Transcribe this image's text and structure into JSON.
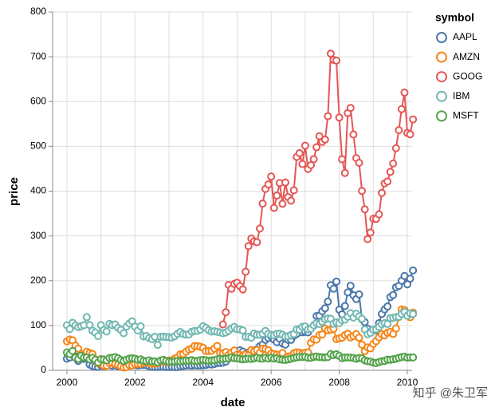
{
  "chart_data": {
    "type": "line",
    "x_label": "date",
    "y_label": "price",
    "legend_title": "symbol",
    "watermark": "知乎 @朱卫军",
    "xlim": [
      1999.58,
      2010.14
    ],
    "xticks": [
      2000,
      2002,
      2004,
      2006,
      2008,
      2010
    ],
    "xminorticks": [
      2001,
      2003,
      2005,
      2007,
      2009
    ],
    "ylim": [
      0,
      800
    ],
    "yticks": [
      0,
      100,
      200,
      300,
      400,
      500,
      600,
      700,
      800
    ],
    "grid": true,
    "x": [
      2000,
      2000.083,
      2000.167,
      2000.25,
      2000.333,
      2000.417,
      2000.5,
      2000.583,
      2000.667,
      2000.75,
      2000.833,
      2000.917,
      2001,
      2001.083,
      2001.167,
      2001.25,
      2001.333,
      2001.417,
      2001.5,
      2001.583,
      2001.667,
      2001.75,
      2001.833,
      2001.917,
      2002,
      2002.083,
      2002.167,
      2002.25,
      2002.333,
      2002.417,
      2002.5,
      2002.583,
      2002.667,
      2002.75,
      2002.833,
      2002.917,
      2003,
      2003.083,
      2003.167,
      2003.25,
      2003.333,
      2003.417,
      2003.5,
      2003.583,
      2003.667,
      2003.75,
      2003.833,
      2003.917,
      2004,
      2004.083,
      2004.167,
      2004.25,
      2004.333,
      2004.417,
      2004.5,
      2004.583,
      2004.667,
      2004.75,
      2004.833,
      2004.917,
      2005,
      2005.083,
      2005.167,
      2005.25,
      2005.333,
      2005.417,
      2005.5,
      2005.583,
      2005.667,
      2005.75,
      2005.833,
      2005.917,
      2006,
      2006.083,
      2006.167,
      2006.25,
      2006.333,
      2006.417,
      2006.5,
      2006.583,
      2006.667,
      2006.75,
      2006.833,
      2006.917,
      2007,
      2007.083,
      2007.167,
      2007.25,
      2007.333,
      2007.417,
      2007.5,
      2007.583,
      2007.667,
      2007.75,
      2007.833,
      2007.917,
      2008,
      2008.083,
      2008.167,
      2008.25,
      2008.333,
      2008.417,
      2008.5,
      2008.583,
      2008.667,
      2008.75,
      2008.833,
      2008.917,
      2009,
      2009.083,
      2009.167,
      2009.25,
      2009.333,
      2009.417,
      2009.5,
      2009.583,
      2009.667,
      2009.75,
      2009.833,
      2009.917,
      2010,
      2010.083,
      2010.167
    ],
    "series": [
      {
        "name": "AAPL",
        "color": "#4c78a8",
        "values": [
          25.94,
          28.66,
          33.95,
          31.01,
          21,
          26.19,
          25.41,
          30.47,
          12.88,
          9.78,
          8.25,
          7.44,
          10.81,
          9.12,
          11.03,
          12.74,
          9.98,
          11.62,
          9.4,
          9.27,
          7.76,
          8.78,
          10.65,
          10.95,
          12.36,
          10.85,
          11.84,
          12.14,
          11.65,
          8.86,
          7.63,
          7.38,
          7.25,
          8.03,
          7.75,
          7.16,
          7.18,
          7.51,
          7.07,
          7.11,
          8.98,
          9.53,
          10.54,
          11.31,
          10.36,
          11.44,
          10.45,
          10.69,
          11.28,
          11.96,
          13.52,
          12.89,
          14.03,
          16.27,
          16.17,
          17.25,
          19.38,
          26.2,
          33.53,
          32.2,
          38.45,
          44.86,
          41.67,
          36.06,
          39.76,
          36.81,
          42.65,
          46.89,
          53.61,
          57.59,
          67.82,
          71.89,
          75.51,
          68.49,
          62.72,
          70.39,
          59.77,
          57.27,
          67.96,
          67.85,
          76.98,
          81.08,
          91.66,
          84.84,
          85.73,
          84.61,
          92.91,
          99.8,
          121.19,
          122.04,
          131.76,
          138.48,
          153.47,
          189.95,
          182.22,
          198.08,
          135.36,
          125.02,
          143.5,
          173.95,
          188.75,
          167.44,
          158.95,
          169.53,
          113.66,
          107.59,
          92.67,
          85.35,
          90.13,
          89.31,
          105.12,
          125.83,
          135.81,
          142.43,
          163.39,
          168.21,
          185.35,
          188.5,
          199.91,
          210.73,
          192.06,
          204.62,
          223.02
        ]
      },
      {
        "name": "AMZN",
        "color": "#f58518",
        "values": [
          64.56,
          68.87,
          67,
          55.19,
          48.31,
          36.31,
          30.12,
          41.5,
          38.44,
          36.62,
          24.69,
          15.56,
          17.31,
          10.19,
          10.23,
          15.78,
          16.69,
          14.15,
          12.49,
          8.94,
          5.97,
          6.98,
          11.32,
          10.82,
          14.19,
          14.1,
          14.3,
          16.69,
          18.23,
          16.25,
          14.45,
          14.94,
          15.93,
          19.36,
          23.35,
          18.89,
          21.85,
          22.01,
          26.03,
          28.69,
          35.89,
          36.32,
          41.64,
          46.32,
          48.43,
          54.43,
          53.97,
          52.62,
          50.4,
          43.01,
          43.28,
          43.6,
          48.5,
          54.4,
          38.92,
          38.14,
          40.86,
          34.13,
          39.68,
          44.29,
          35.18,
          34.27,
          32.36,
          35.51,
          33.09,
          45.15,
          42.7,
          45.3,
          39.86,
          48.46,
          47.15,
          44.82,
          37.44,
          36.53,
          35.21,
          34.61,
          38.68,
          26.89,
          30.83,
          32.12,
          38.09,
          40.34,
          39.46,
          37.67,
          39.14,
          39.79,
          61.33,
          69.14,
          68.41,
          78.54,
          79.91,
          93.15,
          89.15,
          90.56,
          92.64,
          69.58,
          71.3,
          72.76,
          78.63,
          81.62,
          73.33,
          76.34,
          80.81,
          72.76,
          57.24,
          42.7,
          51.28,
          48.9,
          58.82,
          64.79,
          73.44,
          80.52,
          77.99,
          83.66,
          85.76,
          81.19,
          93.36,
          118.81,
          135.91,
          134.52,
          125.41,
          118.4,
          128.82
        ]
      },
      {
        "name": "GOOG",
        "color": "#e45756",
        "values": [
          null,
          null,
          null,
          null,
          null,
          null,
          null,
          null,
          null,
          null,
          null,
          null,
          null,
          null,
          null,
          null,
          null,
          null,
          null,
          null,
          null,
          null,
          null,
          null,
          null,
          null,
          null,
          null,
          null,
          null,
          null,
          null,
          null,
          null,
          null,
          null,
          null,
          null,
          null,
          null,
          null,
          null,
          null,
          null,
          null,
          null,
          null,
          null,
          null,
          null,
          null,
          null,
          null,
          null,
          null,
          102.37,
          129.6,
          190.64,
          181.98,
          192.79,
          195.62,
          187.99,
          180.51,
          220,
          277.27,
          294.15,
          287.76,
          286,
          316.46,
          372.14,
          404.91,
          414.86,
          432.66,
          362.62,
          390,
          417.94,
          371.82,
          419.33,
          386.6,
          378.53,
          401.9,
          476.39,
          484.81,
          460.48,
          501.5,
          449.45,
          458.16,
          471.38,
          497.91,
          522.7,
          510,
          515.25,
          567.27,
          707,
          693,
          691.48,
          564.3,
          471.18,
          440.47,
          574.29,
          585.8,
          526.42,
          473.75,
          463.29,
          400.52,
          359.36,
          292.96,
          307.65,
          338.53,
          337.99,
          348.06,
          395.97,
          417.23,
          421.59,
          443.05,
          461.67,
          495.85,
          536.12,
          583,
          619.98,
          529.94,
          526.8,
          560.19
        ]
      },
      {
        "name": "IBM",
        "color": "#72b7b2",
        "values": [
          100.52,
          92.11,
          106.11,
          99.95,
          96.31,
          98.33,
          100.74,
          118.62,
          101.19,
          88.5,
          84.12,
          76.47,
          100.76,
          89.98,
          86.63,
          103.7,
          100.82,
          102.35,
          94.87,
          90.25,
          82.82,
          97.58,
          104.5,
          109.36,
          97.54,
          88.82,
          98.32,
          75.81,
          76.57,
          71.89,
          69.48,
          74.92,
          56.78,
          74.92,
          75.25,
          74.43,
          73.88,
          73.36,
          76.09,
          81.48,
          85.55,
          80.87,
          79.66,
          80.1,
          86.13,
          87.96,
          88.06,
          90.76,
          98.39,
          94.94,
          89.58,
          86.5,
          87.27,
          85.88,
          84.59,
          82.69,
          84.43,
          88.47,
          93.61,
          96.85,
          91.59,
          91.11,
          89.17,
          74.66,
          74.58,
          72.93,
          82.13,
          79.57,
          79.56,
          81.43,
          87.9,
          81.53,
          79.14,
          78.5,
          81.33,
          81.68,
          79.2,
          75.35,
          76.12,
          79.11,
          80.95,
          91.18,
          90.92,
          96.82,
          97.85,
          91.36,
          92.82,
          100.45,
          105.21,
          103.27,
          108.17,
          113.78,
          115.58,
          114.84,
          103.93,
          106.91,
          105.1,
          111.64,
          113.2,
          119.58,
          127.51,
          117.79,
          126.32,
          120.37,
          114.92,
          91.06,
          80.39,
          83.56,
          90.75,
          91.51,
          96.94,
          102.96,
          105.29,
          103.36,
          116.58,
          117.13,
          118.96,
          119.55,
          125.72,
          130.32,
          121.85,
          127.16,
          125.55
        ]
      },
      {
        "name": "MSFT",
        "color": "#54a24b",
        "values": [
          39.81,
          36.35,
          43.22,
          28.37,
          25.45,
          32.54,
          28.4,
          28.4,
          24.53,
          28.02,
          23.34,
          17.65,
          24.84,
          24,
          22.25,
          27.56,
          28.14,
          29.7,
          26.93,
          23.21,
          20.82,
          23.65,
          26.12,
          26.95,
          25.92,
          23.73,
          24.53,
          21.26,
          20.71,
          22.25,
          19.52,
          19.97,
          17.79,
          21.75,
          23.46,
          21.03,
          19.31,
          19.34,
          19.76,
          20.87,
          20.09,
          20.93,
          21.56,
          21.65,
          22.69,
          20.89,
          21.04,
          22.56,
          23.28,
          22.54,
          21.31,
          22.21,
          22.57,
          24.49,
          25.56,
          25.23,
          25.88,
          26.74,
          28.92,
          27.09,
          26.64,
          25.4,
          24.44,
          25.12,
          26.32,
          25.4,
          26.72,
          28.38,
          26.46,
          25.92,
          28.12,
          26.13,
          28.12,
          26.13,
          27.01,
          24.37,
          23.64,
          23.04,
          24.41,
          25.85,
          27.53,
          28.83,
          29.74,
          29.63,
          30.15,
          28.01,
          27.95,
          29.97,
          30.7,
          29.5,
          29.26,
          28.84,
          29.64,
          36.31,
          33.69,
          35.6,
          32.22,
          27.25,
          28.41,
          28.53,
          28.31,
          27.51,
          25.72,
          27.29,
          26.69,
          22.32,
          20.22,
          19.44,
          17.1,
          16.15,
          18.37,
          20.26,
          20.89,
          23.77,
          23.52,
          24.65,
          25.72,
          27.73,
          29.41,
          30.48,
          28.18,
          28.66,
          28.8
        ]
      }
    ]
  }
}
